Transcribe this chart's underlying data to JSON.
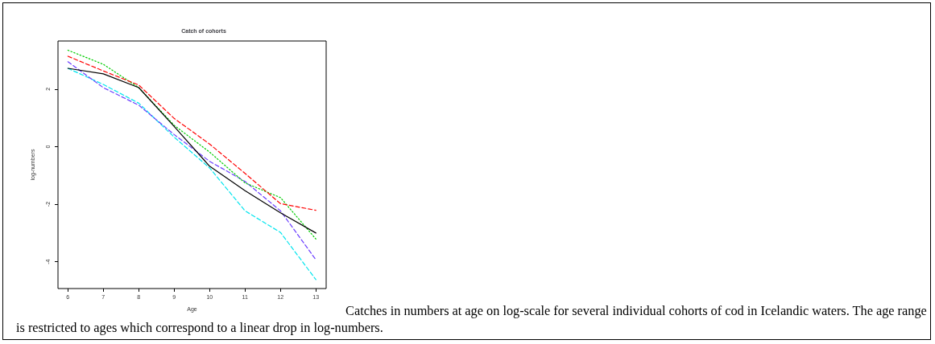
{
  "chart_data": {
    "type": "line",
    "title": "Catch of cohorts",
    "xlabel": "Age",
    "ylabel": "log-numbers",
    "x": [
      6,
      7,
      8,
      9,
      10,
      11,
      12,
      13
    ],
    "series": [
      {
        "color": "#000000",
        "line_style": "solid",
        "values": [
          2.72,
          2.53,
          2.05,
          0.7,
          -0.68,
          -1.53,
          -2.3,
          -3.0
        ]
      },
      {
        "color": "#ff0000",
        "line_style": "dashed",
        "values": [
          3.14,
          2.63,
          2.14,
          0.98,
          0.09,
          -0.93,
          -1.98,
          -2.21
        ]
      },
      {
        "color": "#00cd00",
        "line_style": "dotted",
        "values": [
          3.35,
          2.86,
          2.05,
          0.74,
          -0.19,
          -1.26,
          -1.77,
          -3.21
        ]
      },
      {
        "color": "#6a3dff",
        "line_style": "dashed",
        "values": [
          2.95,
          2.05,
          1.44,
          0.42,
          -0.51,
          -1.21,
          -2.23,
          -3.93
        ]
      },
      {
        "color": "#00e5ee",
        "line_style": "dashed",
        "values": [
          2.72,
          2.16,
          1.51,
          0.33,
          -0.74,
          -2.23,
          -2.98,
          -4.62
        ]
      }
    ],
    "xlim": [
      5.72,
      13.29
    ],
    "xticks": [
      6,
      7,
      8,
      9,
      10,
      11,
      12,
      13
    ],
    "ylim": [
      -4.93,
      3.67
    ],
    "yticks": [
      -4,
      -2,
      0,
      2
    ],
    "grid": false,
    "marker": "none",
    "annotations": [
      "Catches in numbers at age on log-scale for several individual cohorts of cod in Icelandic waters. The age range is restricted to ages which correspond to a linear drop in log-numbers."
    ]
  }
}
